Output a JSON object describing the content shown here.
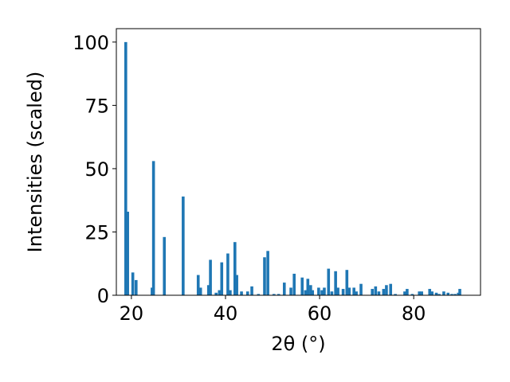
{
  "chart_data": {
    "type": "bar",
    "x_label": "2θ (°)",
    "y_label": "Intensities (scaled)",
    "x": [
      18.8,
      19.2,
      20.3,
      21.0,
      24.4,
      24.7,
      27.0,
      31.0,
      34.2,
      34.7,
      36.4,
      36.8,
      38.0,
      38.7,
      39.2,
      40.5,
      41.0,
      42.0,
      42.4,
      43.4,
      44.7,
      45.6,
      47.0,
      48.3,
      49.0,
      50.3,
      51.3,
      52.5,
      53.9,
      54.6,
      56.3,
      57.0,
      57.5,
      58.1,
      58.5,
      59.8,
      60.5,
      61.0,
      61.9,
      62.6,
      63.4,
      63.9,
      65.0,
      65.8,
      66.3,
      67.3,
      67.8,
      68.8,
      71.2,
      71.9,
      72.6,
      73.6,
      74.2,
      75.1,
      76.1,
      78.1,
      78.6,
      79.7,
      81.2,
      81.7,
      83.4,
      83.9,
      84.8,
      85.4,
      86.4,
      87.3,
      88.1,
      88.8,
      89.5,
      89.8
    ],
    "values": [
      100,
      33,
      9,
      6,
      3,
      53,
      23,
      39,
      8,
      3,
      4,
      14,
      1,
      2,
      13,
      16.5,
      2,
      21,
      8,
      1.5,
      1.5,
      3.5,
      0.5,
      15,
      17.5,
      0.5,
      0.5,
      5,
      3,
      8.5,
      7,
      2,
      6.5,
      4,
      2,
      3,
      2,
      3,
      10.5,
      1.5,
      9.5,
      3,
      2.5,
      10,
      3,
      3,
      1.5,
      4.5,
      2.5,
      3.5,
      1.5,
      2.5,
      4,
      4.5,
      0.5,
      1.5,
      2.5,
      0.5,
      1.5,
      1.5,
      2.5,
      1.5,
      1,
      0.5,
      1.5,
      1,
      0.5,
      0.5,
      1,
      2.5
    ],
    "color": "#1f77b4",
    "xlim": [
      16.8,
      94.2
    ],
    "ylim": [
      0,
      105.3
    ],
    "xticks": [
      20,
      40,
      60,
      80
    ],
    "yticks": [
      0,
      25,
      50,
      75,
      100
    ]
  }
}
